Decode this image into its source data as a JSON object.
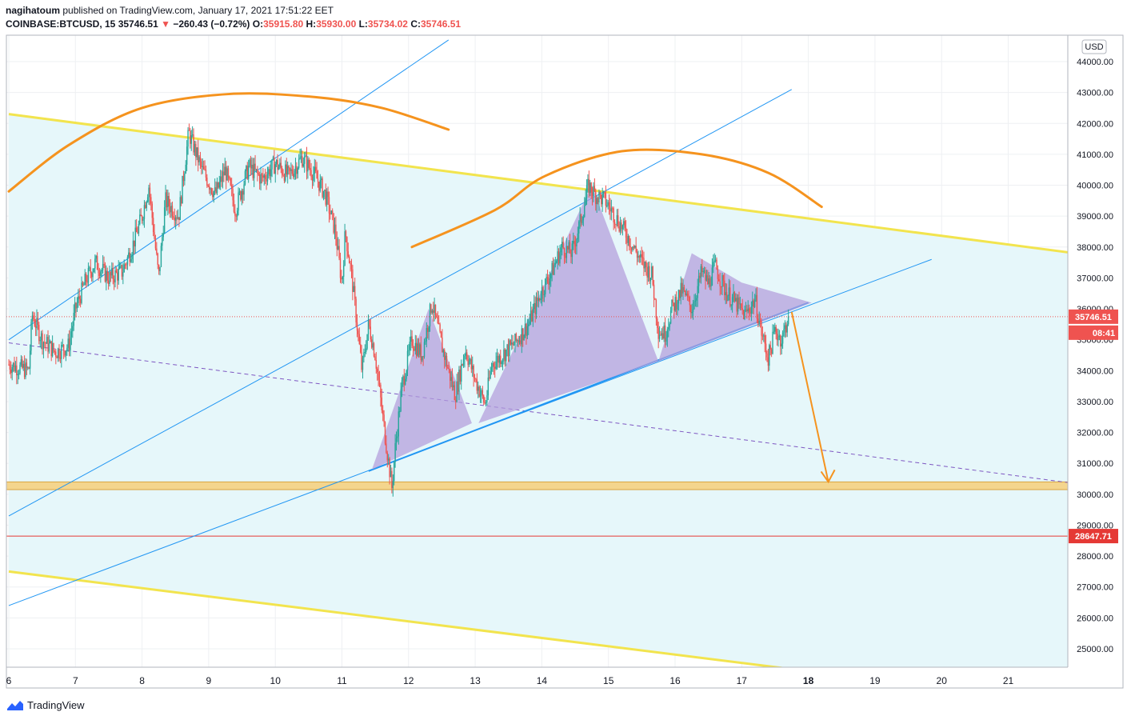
{
  "header": {
    "publisher": "nagihatoum",
    "published_text": "published on TradingView.com, January 17, 2021 17:51:22 EET",
    "symbol": "COINBASE:BTCUSD, 15",
    "last_price": "35746.51",
    "change_arrow": "▼",
    "change": "−260.43 (−0.72%)",
    "open_label": "O:",
    "open_value": "35915.80",
    "high_label": "H:",
    "high_value": "35930.00",
    "low_label": "L:",
    "low_value": "35734.02",
    "close_label": "C:",
    "close_value": "35746.51"
  },
  "currency_button": "USD",
  "footer": {
    "brand": "TradingView",
    "icon": "tradingview-logo-icon"
  },
  "colors": {
    "up_candle": "#26a69a",
    "down_candle": "#ef5350",
    "channel_line": "#f2e44e",
    "channel_fill": "#e6f7fa",
    "trend_line": "#2196f3",
    "arc": "#f5931e",
    "pattern_fill": "#b39ddb",
    "support_zone": "#f4d58d",
    "red_level": "#e53935"
  },
  "chart_data": {
    "type": "candlestick",
    "symbol": "COINBASE:BTCUSD",
    "interval": "15",
    "currency": "USD",
    "x_tick_labels": [
      "6",
      "7",
      "8",
      "9",
      "10",
      "11",
      "12",
      "13",
      "14",
      "15",
      "16",
      "17",
      "18",
      "19",
      "20",
      "21"
    ],
    "x_range_days": [
      6,
      22
    ],
    "y_tick_values": [
      25000,
      26000,
      27000,
      28000,
      29000,
      30000,
      31000,
      32000,
      33000,
      34000,
      35000,
      36000,
      37000,
      38000,
      39000,
      40000,
      41000,
      42000,
      43000,
      44000
    ],
    "y_tick_labels": [
      "25000.00",
      "26000.00",
      "27000.00",
      "28000.00",
      "29000.00",
      "30000.00",
      "31000.00",
      "32000.00",
      "33000.00",
      "34000.00",
      "35000.00",
      "36000.00",
      "37000.00",
      "38000.00",
      "39000.00",
      "40000.00",
      "41000.00",
      "42000.00",
      "43000.00",
      "44000.00"
    ],
    "ylim": [
      24400,
      45000
    ],
    "price_path": [
      [
        6.0,
        34200
      ],
      [
        6.3,
        34000
      ],
      [
        6.35,
        35800
      ],
      [
        6.5,
        35000
      ],
      [
        6.7,
        34600
      ],
      [
        6.9,
        34800
      ],
      [
        7.0,
        36000
      ],
      [
        7.15,
        36900
      ],
      [
        7.3,
        37500
      ],
      [
        7.5,
        37000
      ],
      [
        7.7,
        37200
      ],
      [
        7.85,
        38000
      ],
      [
        8.0,
        39000
      ],
      [
        8.1,
        40000
      ],
      [
        8.25,
        37000
      ],
      [
        8.35,
        39500
      ],
      [
        8.55,
        39000
      ],
      [
        8.7,
        41700
      ],
      [
        8.9,
        40500
      ],
      [
        9.1,
        39700
      ],
      [
        9.25,
        40500
      ],
      [
        9.4,
        39200
      ],
      [
        9.6,
        40600
      ],
      [
        9.8,
        40200
      ],
      [
        10.0,
        40700
      ],
      [
        10.2,
        40300
      ],
      [
        10.4,
        40900
      ],
      [
        10.6,
        40300
      ],
      [
        10.75,
        39700
      ],
      [
        10.9,
        38500
      ],
      [
        11.0,
        36800
      ],
      [
        11.05,
        38500
      ],
      [
        11.15,
        37000
      ],
      [
        11.3,
        34000
      ],
      [
        11.4,
        35500
      ],
      [
        11.5,
        34500
      ],
      [
        11.6,
        32700
      ],
      [
        11.75,
        30200
      ],
      [
        11.8,
        31500
      ],
      [
        11.9,
        33500
      ],
      [
        12.05,
        35000
      ],
      [
        12.2,
        34500
      ],
      [
        12.35,
        36200
      ],
      [
        12.5,
        34800
      ],
      [
        12.6,
        34000
      ],
      [
        12.7,
        33200
      ],
      [
        12.85,
        34700
      ],
      [
        13.0,
        33700
      ],
      [
        13.15,
        32900
      ],
      [
        13.25,
        34200
      ],
      [
        13.4,
        34500
      ],
      [
        13.6,
        34900
      ],
      [
        13.8,
        35500
      ],
      [
        14.0,
        36600
      ],
      [
        14.15,
        37200
      ],
      [
        14.3,
        38000
      ],
      [
        14.45,
        37800
      ],
      [
        14.6,
        39000
      ],
      [
        14.7,
        40000
      ],
      [
        14.8,
        39700
      ],
      [
        14.95,
        39500
      ],
      [
        15.1,
        39000
      ],
      [
        15.3,
        38300
      ],
      [
        15.5,
        37500
      ],
      [
        15.65,
        37100
      ],
      [
        15.75,
        35300
      ],
      [
        15.85,
        35200
      ],
      [
        15.95,
        36000
      ],
      [
        16.1,
        36600
      ],
      [
        16.25,
        36000
      ],
      [
        16.4,
        37200
      ],
      [
        16.5,
        36800
      ],
      [
        16.6,
        37400
      ],
      [
        16.75,
        36600
      ],
      [
        16.9,
        36200
      ],
      [
        17.05,
        35800
      ],
      [
        17.2,
        36300
      ],
      [
        17.3,
        35200
      ],
      [
        17.4,
        34400
      ],
      [
        17.5,
        35300
      ],
      [
        17.6,
        35000
      ],
      [
        17.7,
        35746.51
      ]
    ],
    "last_price": 35746.51,
    "last_price_label": "35746.51",
    "countdown_label": "08:41",
    "red_level": 28647.71,
    "red_level_label": "28647.71",
    "support_zone": [
      30150,
      30400
    ],
    "channel": {
      "upper": [
        [
          6.0,
          42300
        ],
        [
          22.0,
          37800
        ]
      ],
      "lower": [
        [
          6.0,
          27500
        ],
        [
          22.0,
          23200
        ]
      ]
    },
    "dashed_midline": [
      [
        6.0,
        34900
      ],
      [
        22.0,
        30350
      ]
    ],
    "trend_lines": [
      [
        [
          6.0,
          35000
        ],
        [
          12.6,
          44700
        ]
      ],
      [
        [
          6.0,
          29300
        ],
        [
          17.75,
          43100
        ]
      ],
      [
        [
          6.0,
          26400
        ],
        [
          19.85,
          37600
        ]
      ],
      [
        [
          11.4,
          30750
        ],
        [
          18.0,
          36200
        ]
      ]
    ],
    "triangle_patterns": [
      [
        [
          11.45,
          30800
        ],
        [
          12.3,
          36000
        ],
        [
          12.95,
          32300
        ]
      ],
      [
        [
          13.05,
          32300
        ],
        [
          14.75,
          40000
        ],
        [
          15.75,
          34300
        ]
      ],
      [
        [
          16.25,
          37800
        ],
        [
          17.0,
          36850
        ],
        [
          18.05,
          36200
        ],
        [
          15.75,
          34300
        ]
      ]
    ],
    "arcs": [
      [
        [
          6.0,
          39800
        ],
        [
          6.9,
          41300
        ],
        [
          8.0,
          42500
        ],
        [
          9.3,
          42950
        ],
        [
          10.6,
          42850
        ],
        [
          11.6,
          42500
        ],
        [
          12.6,
          41800
        ]
      ],
      [
        [
          12.05,
          38000
        ],
        [
          13.3,
          39200
        ],
        [
          14.05,
          40300
        ],
        [
          15.2,
          41100
        ],
        [
          16.4,
          41000
        ],
        [
          17.4,
          40400
        ],
        [
          18.2,
          39300
        ]
      ]
    ],
    "forecast_arrow": [
      [
        17.75,
        35900
      ],
      [
        18.3,
        30400
      ]
    ]
  }
}
